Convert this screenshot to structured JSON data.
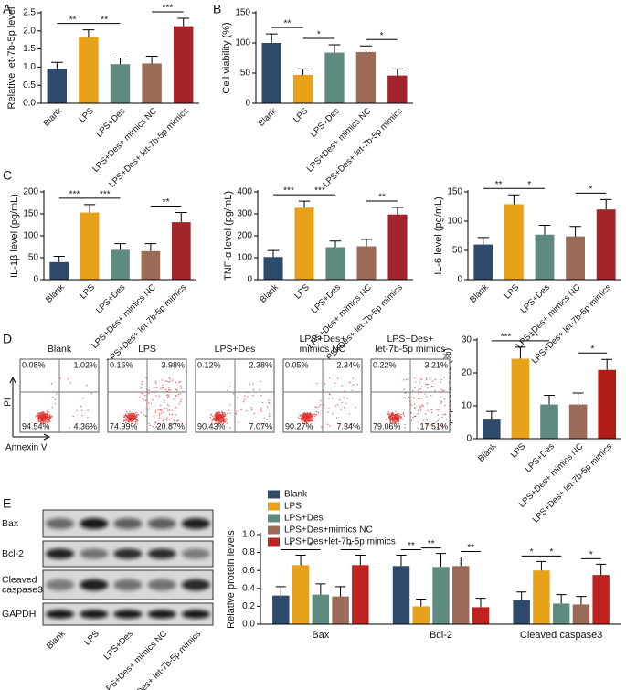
{
  "panel_labels": [
    "A",
    "B",
    "C",
    "D",
    "E"
  ],
  "chart_data": [
    {
      "type": "bar",
      "ylabel": "Relative let-7b-5p level",
      "categories": [
        "Blank",
        "LPS",
        "LPS+Des",
        "LPS+Des+ mimics NC",
        "LPS+Des+ let-7b-5p mimics"
      ],
      "values": [
        0.95,
        1.83,
        1.08,
        1.1,
        2.13
      ],
      "errors": [
        0.18,
        0.2,
        0.17,
        0.2,
        0.22
      ],
      "colors": [
        "#2e4a6b",
        "#e8a21a",
        "#5f8a80",
        "#9c6b57",
        "#a3242a"
      ],
      "ylim": [
        0,
        2.5
      ],
      "yticks": [
        {
          "value": 0,
          "label": "0.0"
        },
        0.5,
        {
          "value": 1,
          "label": "1.0"
        },
        1.5,
        {
          "value": 2,
          "label": "2.0"
        },
        2.5
      ],
      "significance": [
        {
          "between": [
            "Blank",
            "LPS"
          ],
          "label": "**"
        },
        {
          "between": [
            "LPS",
            "LPS+Des"
          ],
          "label": "**"
        },
        {
          "between": [
            "LPS+Des+ mimics NC",
            "LPS+Des+ let-7b-5p mimics"
          ],
          "label": "***"
        }
      ]
    },
    {
      "type": "bar",
      "ylabel": "Cell viability (%)",
      "categories": [
        "Blank",
        "LPS",
        "LPS+Des",
        "LPS+Des+ mimics NC",
        "LPS+Des+ let-7b-5p mimics"
      ],
      "values": [
        100,
        47,
        84,
        85,
        46
      ],
      "errors": [
        15,
        10,
        13,
        10,
        11
      ],
      "colors": [
        "#2e4a6b",
        "#e8a21a",
        "#5f8a80",
        "#9c6b57",
        "#a3242a"
      ],
      "ylim": [
        0,
        150
      ],
      "yticks": [
        0,
        50,
        100,
        150
      ],
      "significance": [
        {
          "between": [
            "Blank",
            "LPS"
          ],
          "label": "**"
        },
        {
          "between": [
            "LPS",
            "LPS+Des"
          ],
          "label": "*"
        },
        {
          "between": [
            "LPS+Des+ mimics NC",
            "LPS+Des+ let-7b-5p mimics"
          ],
          "label": "*"
        }
      ]
    },
    {
      "type": "bar",
      "ylabel": "IL-1β level (pg/mL)",
      "categories": [
        "Blank",
        "LPS",
        "LPS+Des",
        "LPS+Des+ mimics NC",
        "LPS+Des+ let-7b-5p mimics"
      ],
      "values": [
        40,
        153,
        68,
        65,
        131
      ],
      "errors": [
        13,
        18,
        14,
        17,
        22
      ],
      "colors": [
        "#2e4a6b",
        "#e8a21a",
        "#5f8a80",
        "#9c6b57",
        "#a3242a"
      ],
      "ylim": [
        0,
        200
      ],
      "yticks": [
        0,
        50,
        100,
        150,
        200
      ],
      "significance": [
        {
          "between": [
            "Blank",
            "LPS"
          ],
          "label": "***"
        },
        {
          "between": [
            "LPS",
            "LPS+Des"
          ],
          "label": "***"
        },
        {
          "between": [
            "LPS+Des+ mimics NC",
            "LPS+Des+ let-7b-5p mimics"
          ],
          "label": "**"
        }
      ]
    },
    {
      "type": "bar",
      "ylabel": "TNF-α level (pg/mL)",
      "categories": [
        "Blank",
        "LPS",
        "LPS+Des",
        "LPS+Des+ mimics NC",
        "LPS+Des+ let-7b-5p mimics"
      ],
      "values": [
        103,
        328,
        148,
        152,
        297
      ],
      "errors": [
        30,
        30,
        28,
        32,
        32
      ],
      "colors": [
        "#2e4a6b",
        "#e8a21a",
        "#5f8a80",
        "#9c6b57",
        "#a3242a"
      ],
      "ylim": [
        0,
        400
      ],
      "yticks": [
        0,
        100,
        200,
        300,
        400
      ],
      "significance": [
        {
          "between": [
            "Blank",
            "LPS"
          ],
          "label": "***"
        },
        {
          "between": [
            "LPS",
            "LPS+Des"
          ],
          "label": "***"
        },
        {
          "between": [
            "LPS+Des+ mimics NC",
            "LPS+Des+ let-7b-5p mimics"
          ],
          "label": "**"
        }
      ]
    },
    {
      "type": "bar",
      "ylabel": "IL-6 level (pg/mL)",
      "categories": [
        "Blank",
        "LPS",
        "LPS+Des",
        "LPS+Des+ mimics NC",
        "LPS+Des+ let-7b-5p mimics"
      ],
      "values": [
        60,
        129,
        77,
        74,
        120
      ],
      "errors": [
        12,
        16,
        16,
        17,
        17
      ],
      "colors": [
        "#2e4a6b",
        "#e8a21a",
        "#5f8a80",
        "#9c6b57",
        "#a3242a"
      ],
      "ylim": [
        0,
        150
      ],
      "yticks": [
        0,
        50,
        100,
        150
      ],
      "significance": [
        {
          "between": [
            "Blank",
            "LPS"
          ],
          "label": "**"
        },
        {
          "between": [
            "LPS",
            "LPS+Des"
          ],
          "label": "*"
        },
        {
          "between": [
            "LPS+Des+ mimics NC",
            "LPS+Des+ let-7b-5p mimics"
          ],
          "label": "*"
        }
      ]
    },
    {
      "type": "bar",
      "ylabel": "Apoptosis rate (%)",
      "categories": [
        "Blank",
        "LPS",
        "LPS+Des",
        "LPS+Des+ mimics NC",
        "LPS+Des+ let-7b-5p mimics"
      ],
      "values": [
        5.8,
        24.3,
        10.4,
        10.4,
        20.9
      ],
      "errors": [
        2.5,
        3.5,
        2.8,
        3.5,
        3.2
      ],
      "colors": [
        "#2e4a6b",
        "#e8a21a",
        "#5f8a80",
        "#9c6b57",
        "#b01c14"
      ],
      "ylim": [
        0,
        30
      ],
      "yticks": [
        0,
        10,
        20,
        30
      ],
      "significance": [
        {
          "between": [
            "Blank",
            "LPS"
          ],
          "label": "***"
        },
        {
          "between": [
            "LPS",
            "LPS+Des"
          ],
          "label": "**"
        },
        {
          "between": [
            "LPS+Des+ mimics NC",
            "LPS+Des+ let-7b-5p mimics"
          ],
          "label": "*"
        }
      ]
    },
    {
      "type": "grouped_bar",
      "ylabel": "Relative protein levels",
      "categories": [
        "Bax",
        "Bcl-2",
        "Cleaved caspase3"
      ],
      "series": [
        {
          "name": "Blank",
          "color": "#2e4a6b",
          "values": [
            0.32,
            0.65,
            0.27
          ],
          "errors": [
            0.1,
            0.12,
            0.09
          ]
        },
        {
          "name": "LPS",
          "color": "#e8a21a",
          "values": [
            0.66,
            0.2,
            0.6
          ],
          "errors": [
            0.11,
            0.08,
            0.1
          ]
        },
        {
          "name": "LPS+Des",
          "color": "#5f8a80",
          "values": [
            0.33,
            0.64,
            0.23
          ],
          "errors": [
            0.12,
            0.15,
            0.1
          ]
        },
        {
          "name": "LPS+Des+mimics NC",
          "color": "#9c6b57",
          "values": [
            0.31,
            0.65,
            0.22
          ],
          "errors": [
            0.11,
            0.1,
            0.09
          ]
        },
        {
          "name": "LPS+Des+let-7b-5p mimics",
          "color": "#c0231f",
          "values": [
            0.66,
            0.19,
            0.55
          ],
          "errors": [
            0.11,
            0.1,
            0.12
          ]
        }
      ],
      "ylim": [
        0,
        1
      ],
      "yticks": [
        {
          "value": 0,
          "label": "0.0"
        },
        0.2,
        0.4,
        0.6,
        0.8,
        {
          "value": 1,
          "label": "1.0"
        }
      ],
      "legend": "upper left",
      "significance": [
        {
          "category": "Bax",
          "between": [
            "Blank",
            "LPS"
          ],
          "label": "*"
        },
        {
          "category": "Bax",
          "between": [
            "LPS",
            "LPS+Des"
          ],
          "label": "*"
        },
        {
          "category": "Bax",
          "between": [
            "LPS+Des+mimics NC",
            "LPS+Des+let-7b-5p mimics"
          ],
          "label": "*"
        },
        {
          "category": "Bcl-2",
          "between": [
            "Blank",
            "LPS"
          ],
          "label": "**"
        },
        {
          "category": "Bcl-2",
          "between": [
            "LPS",
            "LPS+Des"
          ],
          "label": "**"
        },
        {
          "category": "Bcl-2",
          "between": [
            "LPS+Des+mimics NC",
            "LPS+Des+let-7b-5p mimics"
          ],
          "label": "**"
        },
        {
          "category": "Cleaved caspase3",
          "between": [
            "Blank",
            "LPS"
          ],
          "label": "*"
        },
        {
          "category": "Cleaved caspase3",
          "between": [
            "LPS",
            "LPS+Des"
          ],
          "label": "*"
        },
        {
          "category": "Cleaved caspase3",
          "between": [
            "LPS+Des+mimics NC",
            "LPS+Des+let-7b-5p mimics"
          ],
          "label": "*"
        }
      ]
    }
  ],
  "flow": {
    "y_label": "PI",
    "x_label": "Annexin V",
    "panels": [
      {
        "title": [
          "Blank"
        ],
        "quadrants": [
          "0.08%",
          "1.02%",
          "94.54%",
          "4.36%"
        ]
      },
      {
        "title": [
          "LPS"
        ],
        "quadrants": [
          "0.16%",
          "3.98%",
          "74.99%",
          "20.87%"
        ]
      },
      {
        "title": [
          "LPS+Des"
        ],
        "quadrants": [
          "0.12%",
          "2.38%",
          "90.43%",
          "7.07%"
        ]
      },
      {
        "title": [
          "LPS+Des+",
          "mimics NC"
        ],
        "quadrants": [
          "0.05%",
          "2.34%",
          "90.27%",
          "7.34%"
        ]
      },
      {
        "title": [
          "LPS+Des+",
          "let-7b-5p mimics"
        ],
        "quadrants": [
          "0.22%",
          "3.21%",
          "79.06%",
          "17.51%"
        ]
      }
    ]
  },
  "blot": {
    "row_labels": [
      [
        "Bax"
      ],
      [
        "Bcl-2"
      ],
      [
        "Cleaved",
        "caspase3"
      ],
      [
        "GAPDH"
      ]
    ],
    "lanes": [
      "Blank",
      "LPS",
      "LPS+Des",
      "LPS+Des+ mimics NC",
      "LPS+Des+ let-7b-5p mimics"
    ]
  }
}
